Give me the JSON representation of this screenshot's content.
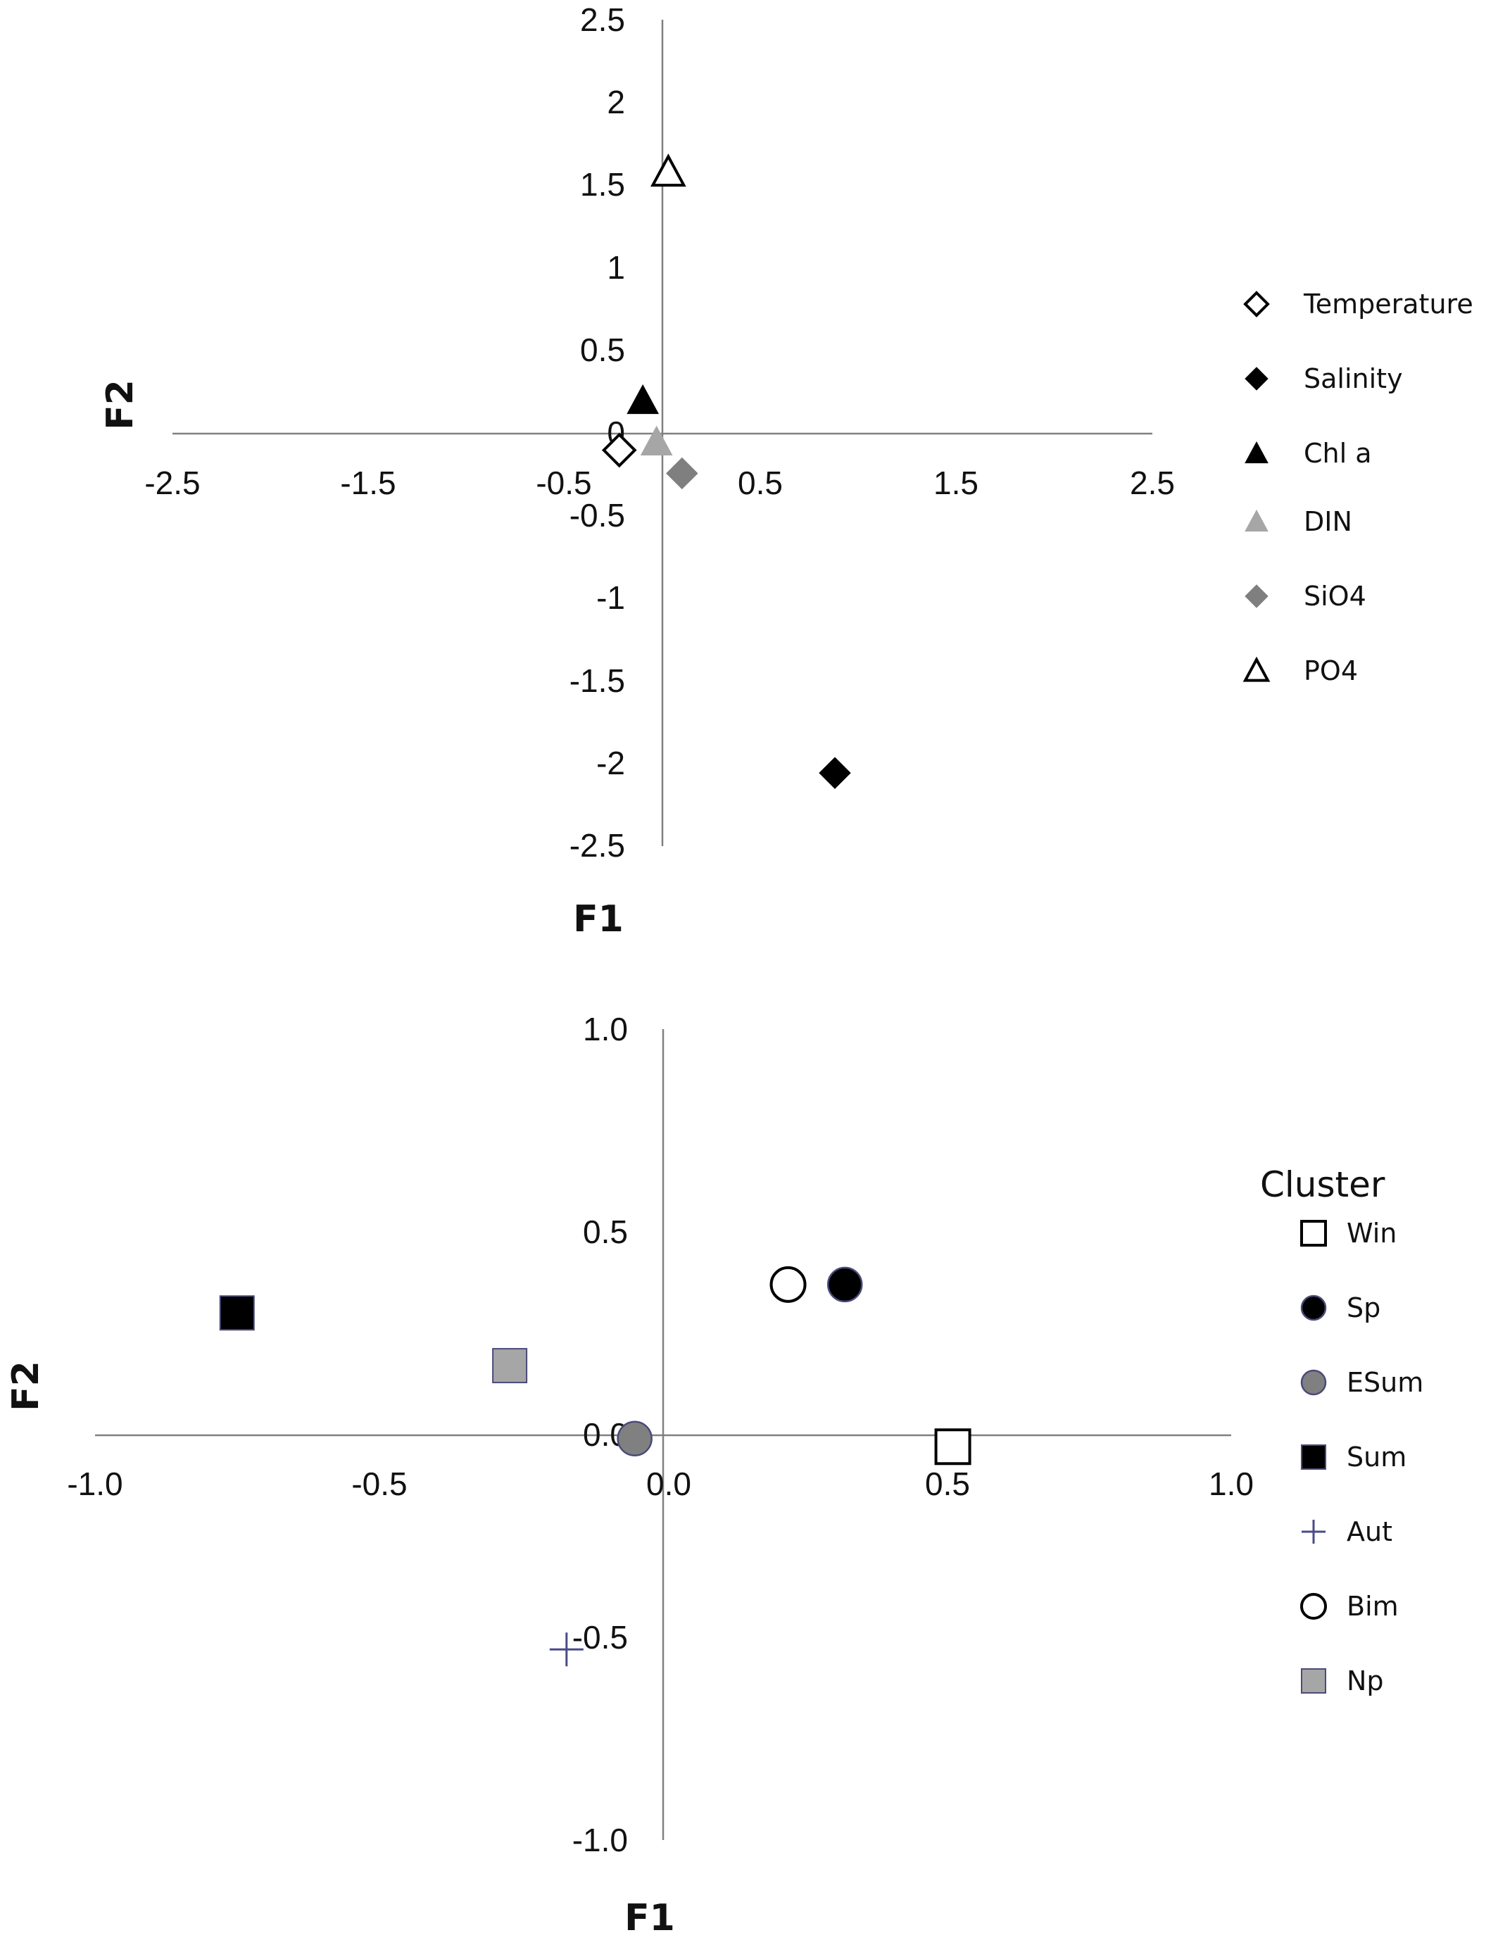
{
  "chart_data": [
    {
      "type": "scatter",
      "xlabel": "F1",
      "ylabel": "F2",
      "xlim": [
        -2.5,
        2.5
      ],
      "ylim": [
        -2.5,
        2.5
      ],
      "x_ticks": [
        "-2.5",
        "-1.5",
        "-0.5",
        "0.5",
        "1.5",
        "2.5"
      ],
      "y_ticks": [
        "2.5",
        "2",
        "1.5",
        "1",
        "0.5",
        "0",
        "-0.5",
        "-1",
        "-1.5",
        "-2",
        "-2.5"
      ],
      "legend_position": "right",
      "legend_title": "",
      "series": [
        {
          "name": "Temperature",
          "marker": "diamond-open",
          "color": "#000000",
          "x": -0.22,
          "y": -0.1
        },
        {
          "name": "Salinity",
          "marker": "diamond",
          "color": "#000000",
          "x": 0.88,
          "y": -2.05
        },
        {
          "name": "Chl a",
          "marker": "triangle",
          "color": "#000000",
          "x": -0.1,
          "y": 0.2
        },
        {
          "name": "DIN",
          "marker": "triangle",
          "color": "#a6a6a6",
          "x": -0.03,
          "y": -0.05
        },
        {
          "name": "SiO4",
          "marker": "diamond",
          "color": "#7f7f7f",
          "x": 0.1,
          "y": -0.24
        },
        {
          "name": "PO4",
          "marker": "triangle-open",
          "color": "#000000",
          "x": 0.03,
          "y": 1.58
        }
      ]
    },
    {
      "type": "scatter",
      "xlabel": "F1",
      "ylabel": "F2",
      "xlim": [
        -1.0,
        1.0
      ],
      "ylim": [
        -1.0,
        1.0
      ],
      "x_ticks": [
        "-1.0",
        "-0.5",
        "0.0",
        "0.5",
        "1.0"
      ],
      "y_ticks": [
        "1.0",
        "0.5",
        "0.0",
        "-0.5",
        "-1.0"
      ],
      "legend_position": "right",
      "legend_title": "Cluster",
      "series": [
        {
          "name": "Win",
          "marker": "square-open",
          "color": "#000000",
          "x": 0.51,
          "y": -0.03
        },
        {
          "name": "Sp",
          "marker": "circle",
          "color": "#000000",
          "x": 0.32,
          "y": 0.37
        },
        {
          "name": "ESum",
          "marker": "circle",
          "color": "#808080",
          "x": -0.05,
          "y": -0.01
        },
        {
          "name": "Sum",
          "marker": "square",
          "color": "#000000",
          "x": -0.75,
          "y": 0.3
        },
        {
          "name": "Aut",
          "marker": "plus",
          "color": "#4a4a8a",
          "x": -0.17,
          "y": -0.53
        },
        {
          "name": "Bim",
          "marker": "circle-open",
          "color": "#000000",
          "x": 0.22,
          "y": 0.37
        },
        {
          "name": "Np",
          "marker": "square",
          "color": "#a6a6a6",
          "x": -0.27,
          "y": 0.17
        }
      ]
    }
  ]
}
